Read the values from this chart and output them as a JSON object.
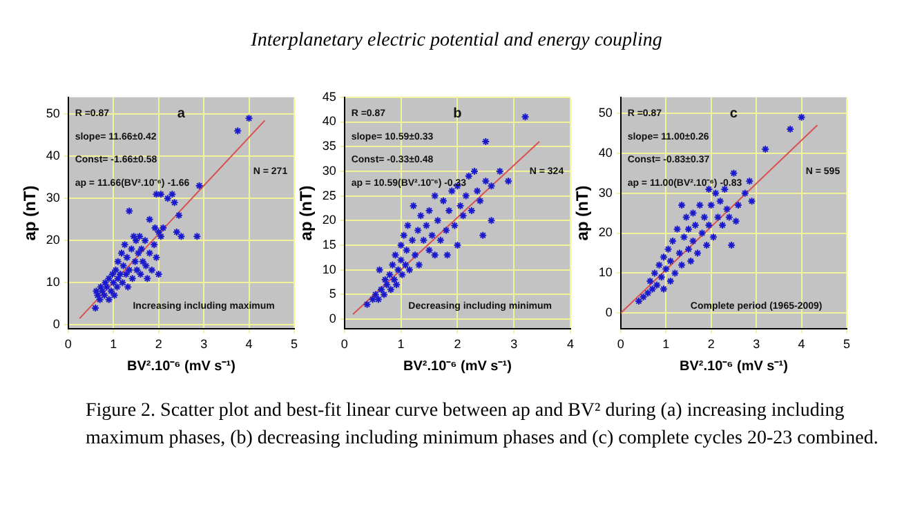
{
  "chart_data": [
    {
      "type": "scatter",
      "xlabel": "BV².10⁻⁶ (mV s⁻¹)",
      "ylabel": "ap (nT)",
      "xlim": [
        0,
        5
      ],
      "ylim": [
        -1,
        54
      ],
      "xticks": [
        0,
        1,
        2,
        3,
        4,
        5
      ],
      "yticks": [
        0,
        10,
        20,
        30,
        40,
        50
      ],
      "grid": true,
      "legend": false,
      "annotations": [
        "R =0.87",
        "slope= 11.66±0.42",
        "Const= -1.66±0.58",
        "ap = 11.66(BV².10⁻⁶) -1.66",
        "a",
        "N = 271",
        "Increasing including maximum"
      ],
      "series": [
        {
          "type": "scatter",
          "marker": "cross",
          "color": "#1a1acc",
          "x": [
            0.6,
            0.62,
            0.65,
            0.7,
            0.72,
            0.75,
            0.8,
            0.82,
            0.85,
            0.9,
            0.9,
            0.95,
            0.98,
            1.0,
            1.02,
            1.05,
            1.08,
            1.1,
            1.1,
            1.15,
            1.18,
            1.2,
            1.22,
            1.25,
            1.28,
            1.3,
            1.32,
            1.35,
            1.35,
            1.4,
            1.42,
            1.45,
            1.48,
            1.5,
            1.52,
            1.55,
            1.58,
            1.6,
            1.62,
            1.65,
            1.7,
            1.72,
            1.75,
            1.8,
            1.8,
            1.85,
            1.9,
            1.92,
            1.95,
            1.95,
            2.0,
            2.0,
            2.05,
            2.05,
            2.1,
            2.2,
            2.3,
            2.35,
            2.4,
            2.45,
            2.5,
            2.85,
            2.9,
            3.75,
            4.0
          ],
          "values": [
            4,
            8,
            7,
            6,
            9,
            8,
            7,
            10,
            9,
            6,
            11,
            8,
            12,
            10,
            7,
            13,
            9,
            15,
            11,
            12,
            17,
            10,
            14,
            19,
            12,
            16,
            9,
            27,
            13,
            18,
            11,
            21,
            15,
            20,
            13,
            17,
            21,
            12,
            18,
            15,
            20,
            14,
            11,
            25,
            17,
            13,
            19,
            23,
            31,
            16,
            22,
            12,
            31,
            21,
            23,
            30,
            31,
            29,
            22,
            26,
            21,
            21,
            33,
            46,
            49
          ]
        },
        {
          "type": "line",
          "marker": "none",
          "color": "#d85050",
          "x": [
            0.25,
            4.35
          ],
          "values": [
            1.5,
            48.5
          ]
        }
      ]
    },
    {
      "type": "scatter",
      "xlabel": "BV².10⁻⁶ (mV s⁻¹)",
      "ylabel": "ap (nT)",
      "xlim": [
        0,
        4
      ],
      "ylim": [
        -2,
        45
      ],
      "xticks": [
        0,
        1,
        2,
        3,
        4
      ],
      "yticks": [
        0,
        5,
        10,
        15,
        20,
        25,
        30,
        35,
        40,
        45
      ],
      "grid": true,
      "legend": false,
      "annotations": [
        "R =0.87",
        "slope= 10.59±0.33",
        "Const= -0.33±0.48",
        "ap = 10.59(BV².10⁻⁶) -0.33",
        "b",
        "N = 324",
        "Decreasing including minimum"
      ],
      "series": [
        {
          "type": "scatter",
          "marker": "cross",
          "color": "#1a1acc",
          "x": [
            0.4,
            0.5,
            0.55,
            0.6,
            0.62,
            0.65,
            0.7,
            0.72,
            0.75,
            0.8,
            0.82,
            0.85,
            0.88,
            0.9,
            0.92,
            0.95,
            1.0,
            1.0,
            1.02,
            1.05,
            1.08,
            1.1,
            1.12,
            1.15,
            1.2,
            1.22,
            1.25,
            1.3,
            1.32,
            1.35,
            1.4,
            1.45,
            1.5,
            1.5,
            1.55,
            1.6,
            1.6,
            1.65,
            1.7,
            1.75,
            1.8,
            1.82,
            1.85,
            1.9,
            1.95,
            2.0,
            2.0,
            2.05,
            2.1,
            2.15,
            2.2,
            2.25,
            2.3,
            2.35,
            2.4,
            2.45,
            2.5,
            2.5,
            2.6,
            2.6,
            2.75,
            2.9,
            3.2
          ],
          "values": [
            3,
            4,
            5,
            4,
            10,
            6,
            5,
            8,
            7,
            9,
            6,
            11,
            8,
            13,
            7,
            10,
            12,
            15,
            9,
            17,
            11,
            14,
            19,
            10,
            16,
            23,
            13,
            18,
            11,
            21,
            16,
            19,
            14,
            22,
            17,
            25,
            13,
            20,
            16,
            24,
            18,
            13,
            22,
            26,
            19,
            27,
            15,
            23,
            21,
            25,
            29,
            22,
            30,
            26,
            24,
            17,
            36,
            28,
            27,
            20,
            30,
            28,
            41
          ]
        },
        {
          "type": "line",
          "marker": "none",
          "color": "#d85050",
          "x": [
            0.15,
            3.45
          ],
          "values": [
            1,
            36
          ]
        }
      ]
    },
    {
      "type": "scatter",
      "xlabel": "BV².10⁻⁶ (mV s⁻¹)",
      "ylabel": "ap (nT)",
      "xlim": [
        0,
        5
      ],
      "ylim": [
        -4,
        54
      ],
      "xticks": [
        0,
        1,
        2,
        3,
        4,
        5
      ],
      "yticks": [
        0,
        10,
        20,
        30,
        40,
        50
      ],
      "grid": true,
      "legend": false,
      "annotations": [
        "R =0.87",
        "slope= 11.00±0.26",
        "Const= -0.83±0.37",
        "ap = 11.00(BV².10⁻⁶) -0.83",
        "c",
        "N = 595",
        "Complete period (1965-2009)"
      ],
      "series": [
        {
          "type": "scatter",
          "marker": "cross",
          "color": "#1a1acc",
          "x": [
            0.4,
            0.5,
            0.6,
            0.65,
            0.7,
            0.75,
            0.8,
            0.85,
            0.9,
            0.95,
            0.95,
            1.0,
            1.05,
            1.1,
            1.1,
            1.15,
            1.2,
            1.25,
            1.3,
            1.35,
            1.35,
            1.4,
            1.45,
            1.5,
            1.5,
            1.55,
            1.6,
            1.6,
            1.65,
            1.7,
            1.75,
            1.8,
            1.85,
            1.9,
            1.95,
            1.95,
            2.0,
            2.05,
            2.1,
            2.15,
            2.2,
            2.25,
            2.3,
            2.35,
            2.4,
            2.45,
            2.5,
            2.55,
            2.6,
            2.75,
            2.85,
            2.9,
            3.2,
            3.75,
            4.0
          ],
          "values": [
            3,
            4,
            5,
            8,
            6,
            10,
            7,
            12,
            9,
            14,
            6,
            11,
            16,
            13,
            8,
            18,
            10,
            21,
            15,
            27,
            12,
            19,
            24,
            16,
            21,
            13,
            25,
            18,
            22,
            15,
            27,
            20,
            24,
            17,
            31,
            22,
            27,
            19,
            30,
            24,
            28,
            22,
            31,
            26,
            24,
            17,
            35,
            23,
            27,
            30,
            33,
            28,
            41,
            46,
            49
          ]
        },
        {
          "type": "line",
          "marker": "none",
          "color": "#d85050",
          "x": [
            0,
            4.35
          ],
          "values": [
            0,
            47
          ]
        }
      ]
    },
    {
      "type": "other",
      "title": "Interplanetary electric potential and energy coupling",
      "annotations": [
        "Figure 2.  Scatter plot and best-fit linear curve between ap and BV² during (a) increasing including maximum phases, (b) decreasing including minimum phases and (c) complete cycles 20-23 combined."
      ]
    }
  ]
}
